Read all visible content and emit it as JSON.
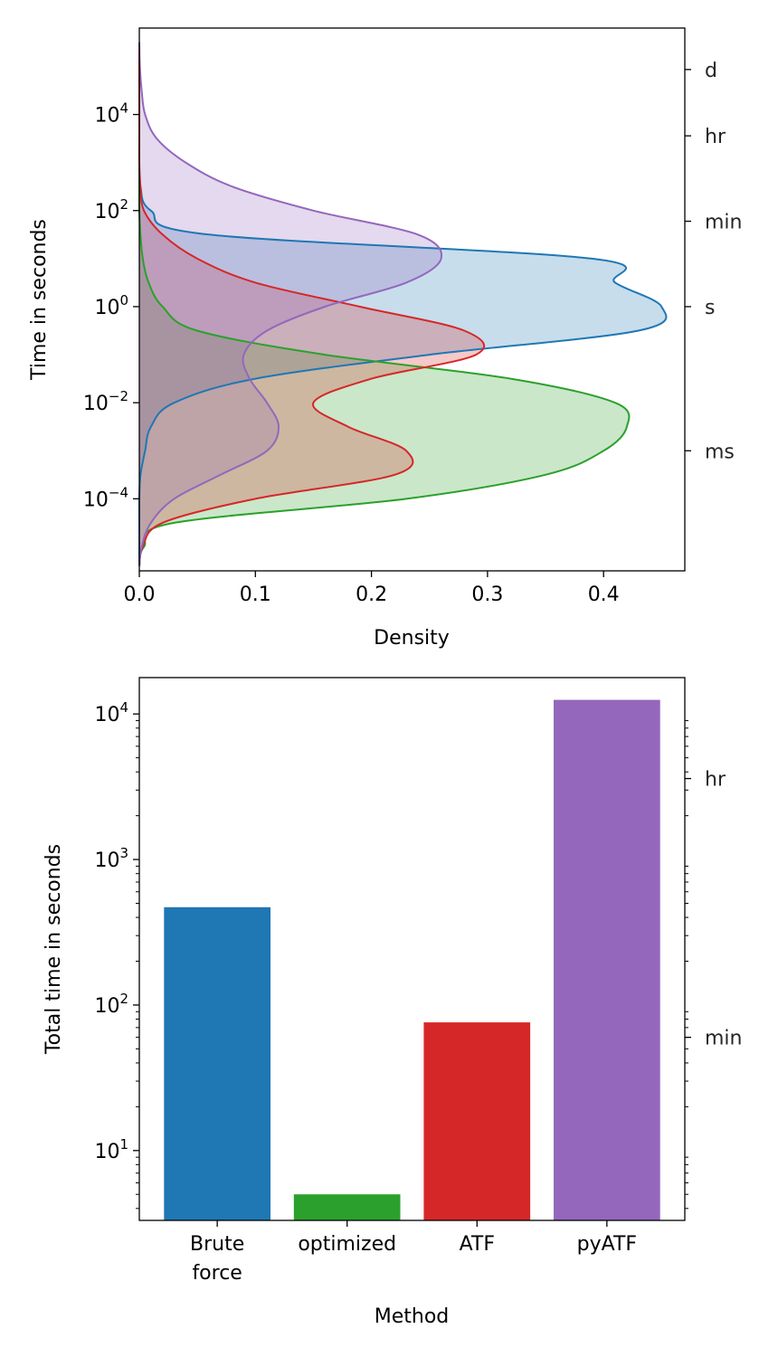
{
  "colors": {
    "brute_force": "#1f77b4",
    "optimized": "#2ca02c",
    "atf": "#d62728",
    "pyatf": "#9467bd"
  },
  "chart_data": [
    {
      "type": "area",
      "orientation": "horizontal-density",
      "xlabel": "Density",
      "ylabel": "Time in seconds",
      "xlim": [
        0.0,
        0.47
      ],
      "ylim_log10": [
        -5.5,
        5.8
      ],
      "yscale": "log",
      "x_ticks": [
        "0.0",
        "0.1",
        "0.2",
        "0.3",
        "0.4"
      ],
      "x_tick_values": [
        0.0,
        0.1,
        0.2,
        0.3,
        0.4
      ],
      "y_ticks": [
        {
          "base": "10",
          "exp": "4"
        },
        {
          "base": "10",
          "exp": "2"
        },
        {
          "base": "10",
          "exp": "0"
        },
        {
          "base": "10",
          "exp": "−2"
        },
        {
          "base": "10",
          "exp": "−4"
        }
      ],
      "y_tick_values_log10": [
        4,
        2,
        0,
        -2,
        -4
      ],
      "secondary_y_ticks": [
        "d",
        "hr",
        "min",
        "s",
        "ms"
      ],
      "secondary_y_tick_values_seconds": [
        86400,
        3600,
        60,
        1,
        0.001
      ],
      "grid": false,
      "series_log10_y": [
        -5.4,
        -5.0,
        -4.5,
        -4.0,
        -3.5,
        -3.0,
        -2.5,
        -2.0,
        -1.5,
        -1.0,
        -0.5,
        0.0,
        0.5,
        1.0,
        1.5,
        2.0,
        2.5,
        3.0,
        3.5,
        4.0,
        4.5,
        5.0,
        5.5
      ],
      "series": [
        {
          "key": "brute_force",
          "density": [
            0.0,
            0.0,
            0.0,
            0.0,
            0.001,
            0.005,
            0.01,
            0.03,
            0.1,
            0.25,
            0.43,
            0.45,
            0.41,
            0.39,
            0.06,
            0.01,
            0.001,
            0.0,
            0.0,
            0.0,
            0.0,
            0.0,
            0.0
          ]
        },
        {
          "key": "optimized",
          "density": [
            0.0,
            0.004,
            0.03,
            0.23,
            0.35,
            0.4,
            0.42,
            0.41,
            0.32,
            0.16,
            0.05,
            0.02,
            0.008,
            0.003,
            0.001,
            0.0,
            0.0,
            0.0,
            0.0,
            0.0,
            0.0,
            0.0,
            0.0
          ]
        },
        {
          "key": "atf",
          "density": [
            0.0,
            0.003,
            0.02,
            0.1,
            0.22,
            0.23,
            0.18,
            0.15,
            0.2,
            0.29,
            0.28,
            0.19,
            0.1,
            0.05,
            0.02,
            0.004,
            0.001,
            0.0,
            0.0,
            0.0,
            0.0,
            0.0,
            0.0
          ]
        },
        {
          "key": "pyatf",
          "density": [
            0.0,
            0.002,
            0.01,
            0.03,
            0.07,
            0.11,
            0.12,
            0.11,
            0.095,
            0.09,
            0.11,
            0.16,
            0.23,
            0.26,
            0.24,
            0.15,
            0.08,
            0.04,
            0.015,
            0.005,
            0.002,
            0.0005,
            0.0
          ]
        }
      ]
    },
    {
      "type": "bar",
      "xlabel": "Method",
      "ylabel": "Total time in seconds",
      "yscale": "log",
      "ylim_log10": [
        0.52,
        4.25
      ],
      "categories": [
        "Brute force",
        "optimized",
        "ATF",
        "pyATF"
      ],
      "category_lines": [
        [
          "Brute",
          "force"
        ],
        [
          "optimized"
        ],
        [
          "ATF"
        ],
        [
          "pyATF"
        ]
      ],
      "category_keys": [
        "brute_force",
        "optimized",
        "atf",
        "pyatf"
      ],
      "values": [
        470,
        5,
        76,
        12500
      ],
      "y_ticks": [
        {
          "base": "10",
          "exp": "4"
        },
        {
          "base": "10",
          "exp": "3"
        },
        {
          "base": "10",
          "exp": "2"
        },
        {
          "base": "10",
          "exp": "1"
        }
      ],
      "y_tick_values_log10": [
        4,
        3,
        2,
        1
      ],
      "secondary_y_ticks": [
        "hr",
        "min"
      ],
      "secondary_y_tick_values_seconds": [
        3600,
        60
      ],
      "grid": false
    }
  ]
}
